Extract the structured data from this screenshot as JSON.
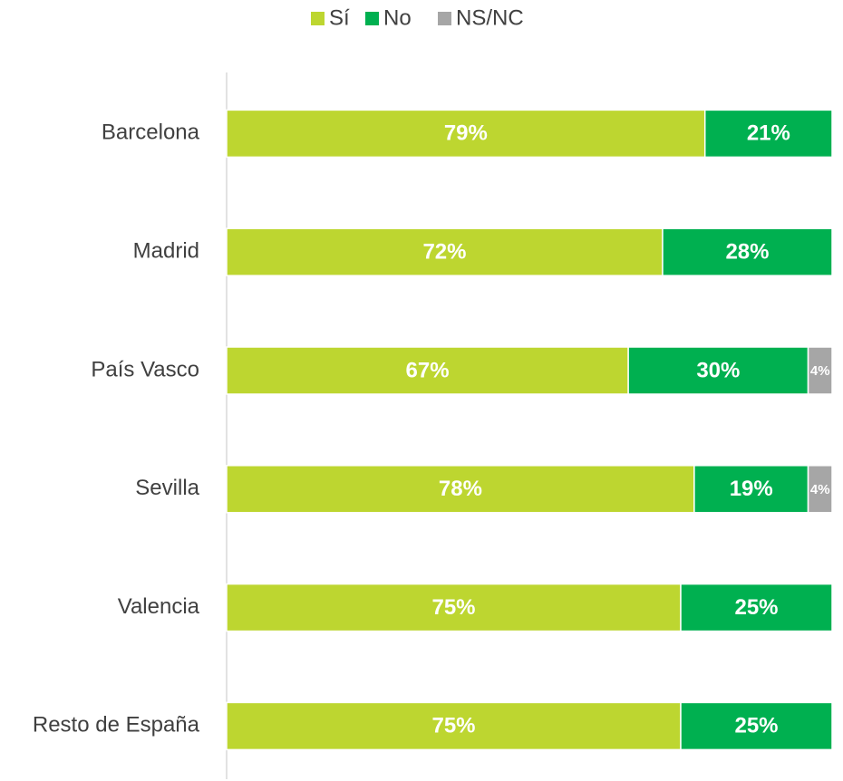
{
  "chart_data": {
    "type": "stacked-bar-horizontal-100",
    "categories": [
      "Barcelona",
      "Madrid",
      "País Vasco",
      "Sevilla",
      "Valencia",
      "Resto de España"
    ],
    "series": [
      {
        "name": "Sí",
        "color": "#bdd630",
        "values": [
          79,
          72,
          67,
          78,
          75,
          75
        ],
        "value_labels": [
          "79%",
          "72%",
          "67%",
          "78%",
          "75%",
          "75%"
        ]
      },
      {
        "name": "No",
        "color": "#00b050",
        "values": [
          21,
          28,
          30,
          19,
          25,
          25
        ],
        "value_labels": [
          "21%",
          "28%",
          "30%",
          "19%",
          "25%",
          "25%"
        ]
      },
      {
        "name": "NS/NC",
        "color": "#a6a6a6",
        "values": [
          null,
          null,
          4,
          4,
          null,
          null
        ],
        "value_labels": [
          null,
          null,
          "4%",
          "4%",
          null,
          null
        ]
      }
    ],
    "legend": "top"
  }
}
